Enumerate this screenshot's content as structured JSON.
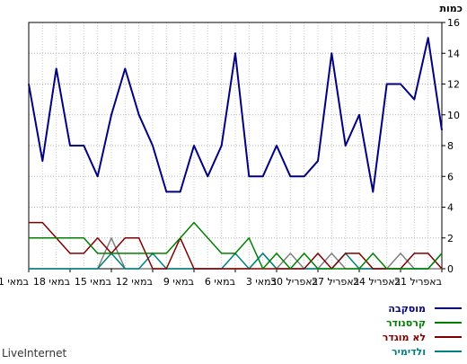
{
  "brand": "LiveInternet",
  "chart_data": {
    "type": "line",
    "ylabel": "כמות",
    "ylim": [
      0,
      16
    ],
    "yticks": [
      0,
      2,
      4,
      6,
      8,
      10,
      12,
      14,
      16
    ],
    "grid": true,
    "legend_position": "bottom-right",
    "x_tick_labels": [
      {
        "label": "21 באפריל",
        "index": 0
      },
      {
        "label": "24 באפריל",
        "index": 3
      },
      {
        "label": "27 באפריל",
        "index": 6
      },
      {
        "label": "30 באפריל",
        "index": 9
      },
      {
        "label": "3 במאי",
        "index": 12
      },
      {
        "label": "6 במאי",
        "index": 15
      },
      {
        "label": "9 במאי",
        "index": 18
      },
      {
        "label": "12 במאי",
        "index": 21
      },
      {
        "label": "15 במאי",
        "index": 24
      },
      {
        "label": "18 במאי",
        "index": 27
      },
      {
        "label": "21 במאי",
        "index": 30
      }
    ],
    "series": [
      {
        "name": "מוסקבה",
        "color": "#000080",
        "values": [
          9,
          15,
          11,
          12,
          12,
          5,
          10,
          8,
          14,
          7,
          6,
          6,
          8,
          6,
          6,
          14,
          8,
          6,
          8,
          5,
          5,
          8,
          10,
          13,
          10,
          6,
          8,
          8,
          13,
          7,
          12
        ]
      },
      {
        "name": "קרסנודר",
        "color": "#008000",
        "values": [
          1,
          0,
          0,
          0,
          0,
          1,
          0,
          0,
          0,
          0,
          1,
          0,
          1,
          0,
          2,
          1,
          1,
          2,
          3,
          2,
          1,
          1,
          1,
          1,
          1,
          1,
          2,
          2,
          2,
          2,
          2
        ]
      },
      {
        "name": "לא מוגדר",
        "color": "#800000",
        "values": [
          0,
          1,
          1,
          0,
          0,
          0,
          1,
          1,
          0,
          1,
          0,
          0,
          0,
          0,
          0,
          0,
          0,
          0,
          0,
          2,
          0,
          0,
          2,
          2,
          1,
          2,
          1,
          1,
          2,
          3,
          3
        ]
      },
      {
        "name": "ולדימיר",
        "color": "#008080",
        "values": [
          1,
          0,
          0,
          0,
          0,
          0,
          0,
          1,
          0,
          0,
          0,
          0,
          0,
          1,
          0,
          1,
          0,
          0,
          0,
          0,
          0,
          1,
          0,
          0,
          1,
          0,
          0,
          0,
          0,
          0,
          0
        ]
      },
      {
        "name": "יקטרינבורג",
        "color": "#808080",
        "values": [
          0,
          0,
          0,
          1,
          0,
          0,
          0,
          0,
          1,
          0,
          0,
          1,
          0,
          1,
          0,
          0,
          0,
          0,
          0,
          0,
          0,
          0,
          0,
          0,
          2,
          0,
          0,
          0,
          0,
          0,
          0
        ]
      }
    ]
  }
}
